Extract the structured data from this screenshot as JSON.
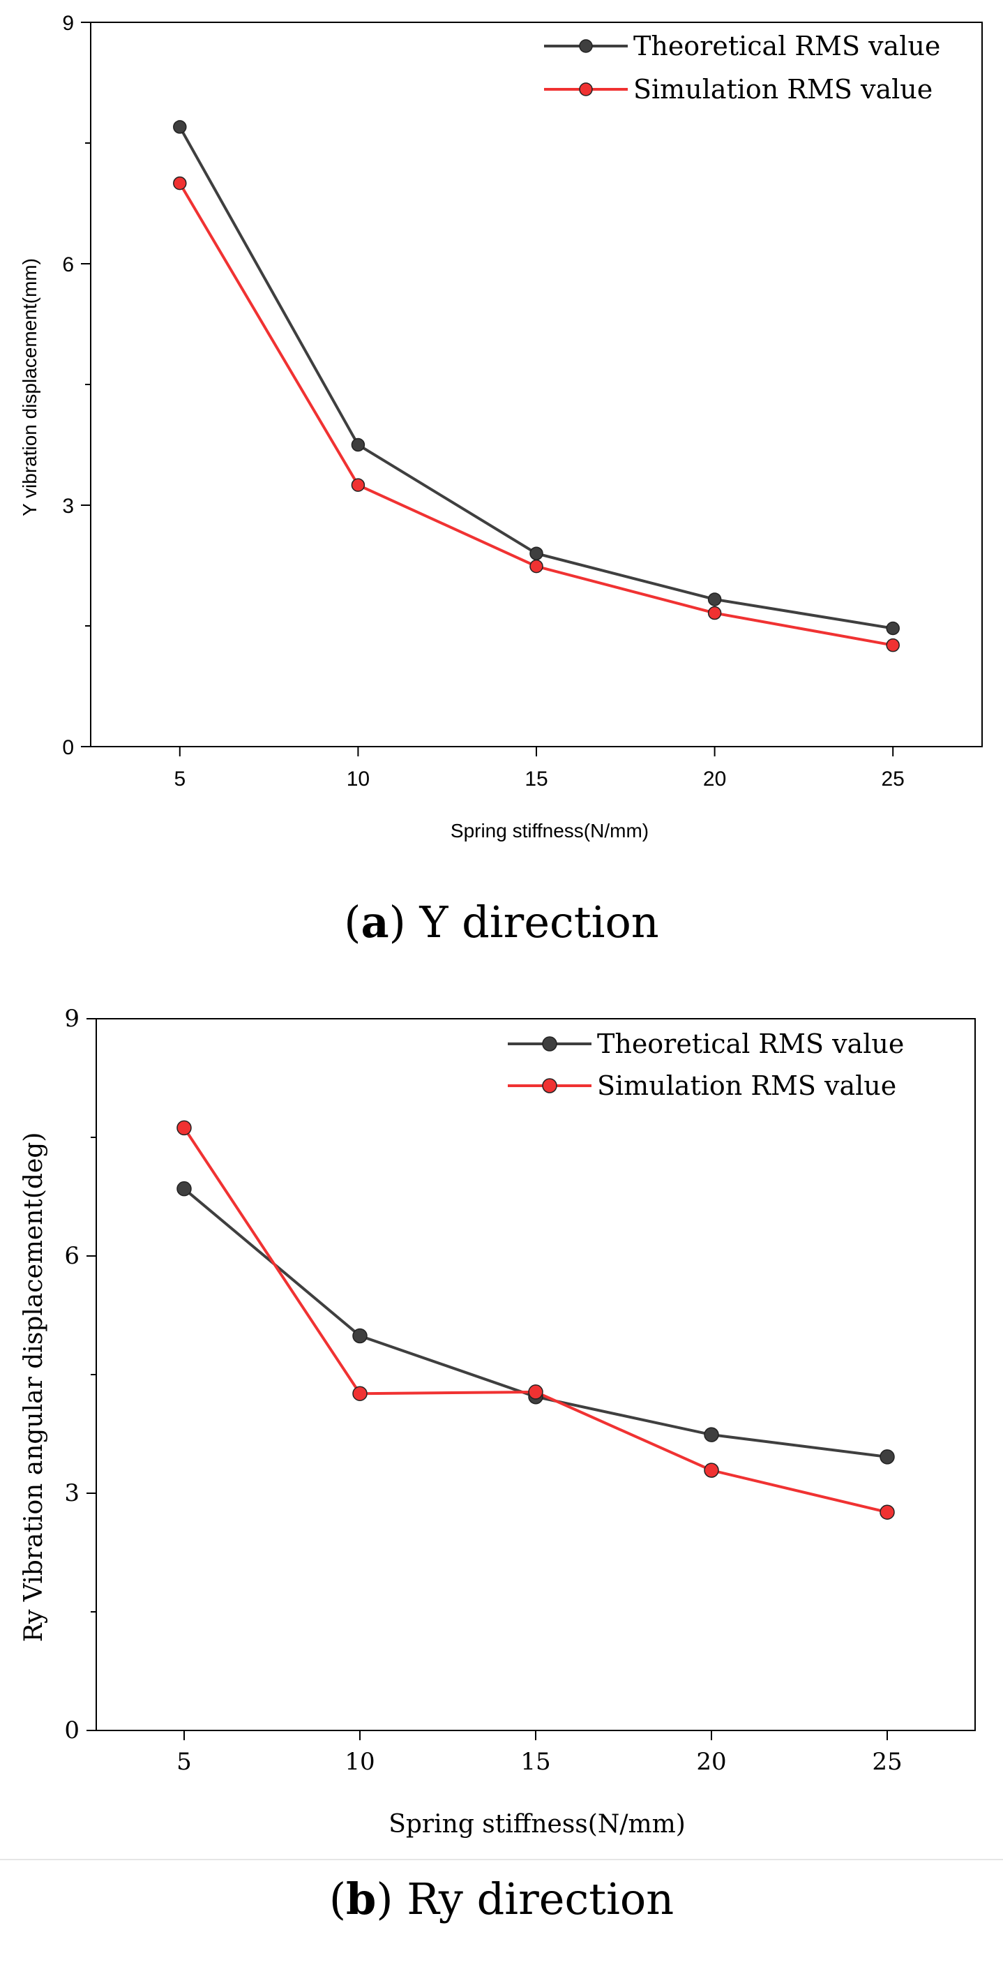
{
  "chart_data": [
    {
      "type": "line",
      "caption_letter": "a",
      "caption_text": "Y direction",
      "xlabel": "Spring stiffness(N/mm)",
      "ylabel": "Y vibration displacement(mm)",
      "categories": [
        5,
        10,
        15,
        20,
        25
      ],
      "x_ticks": [
        "5",
        "10",
        "15",
        "20",
        "25"
      ],
      "y_ticks": [
        "0",
        "3",
        "6",
        "9"
      ],
      "xlim": [
        2.5,
        27.5
      ],
      "ylim": [
        0,
        9
      ],
      "grid": false,
      "legend_position": "top-right",
      "series": [
        {
          "name": "Theoretical RMS value",
          "color": "#3f3f3f",
          "values": [
            7.7,
            3.75,
            2.4,
            1.83,
            1.47
          ]
        },
        {
          "name": "Simulation RMS value",
          "color": "#f03232",
          "values": [
            7.0,
            3.25,
            2.24,
            1.66,
            1.26
          ]
        }
      ]
    },
    {
      "type": "line",
      "caption_letter": "b",
      "caption_text": "Ry direction",
      "xlabel": "Spring stiffness(N/mm)",
      "ylabel": "Ry Vibration angular displacement(deg)",
      "categories": [
        5,
        10,
        15,
        20,
        25
      ],
      "x_ticks": [
        "5",
        "10",
        "15",
        "20",
        "25"
      ],
      "y_ticks": [
        "0",
        "3",
        "6",
        "9"
      ],
      "xlim": [
        2.5,
        27.5
      ],
      "ylim": [
        0,
        9
      ],
      "grid": false,
      "legend_position": "top-right",
      "series": [
        {
          "name": "Theoretical RMS value",
          "color": "#3f3f3f",
          "values": [
            6.85,
            4.99,
            4.22,
            3.74,
            3.46
          ]
        },
        {
          "name": "Simulation RMS value",
          "color": "#f03232",
          "values": [
            7.62,
            4.26,
            4.28,
            3.29,
            2.76
          ]
        }
      ]
    }
  ]
}
